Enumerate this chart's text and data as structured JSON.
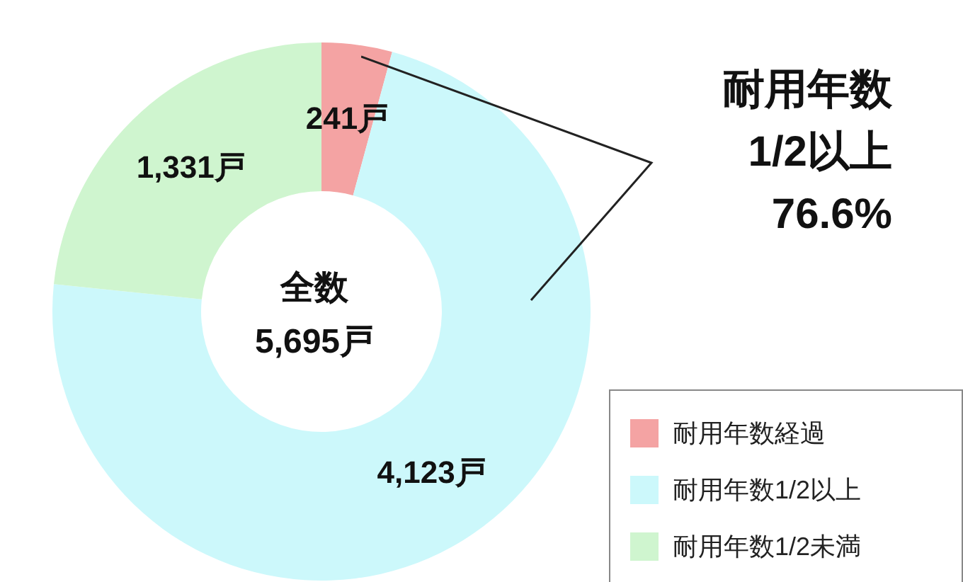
{
  "chart_data": {
    "type": "donut",
    "categories": [
      "耐用年数経過",
      "耐用年数1/2以上",
      "耐用年数1/2未満"
    ],
    "values": [
      241,
      4123,
      1331
    ],
    "colors": [
      "#f4a3a3",
      "#ccf8fb",
      "#cff5cf"
    ],
    "value_labels": [
      "241戸",
      "4,123戸",
      "1,331戸"
    ],
    "annotations": [
      "全数\n5,695戸",
      "耐用年数\n1/2以上\n76.6%"
    ],
    "legend": "bottom right"
  }
}
